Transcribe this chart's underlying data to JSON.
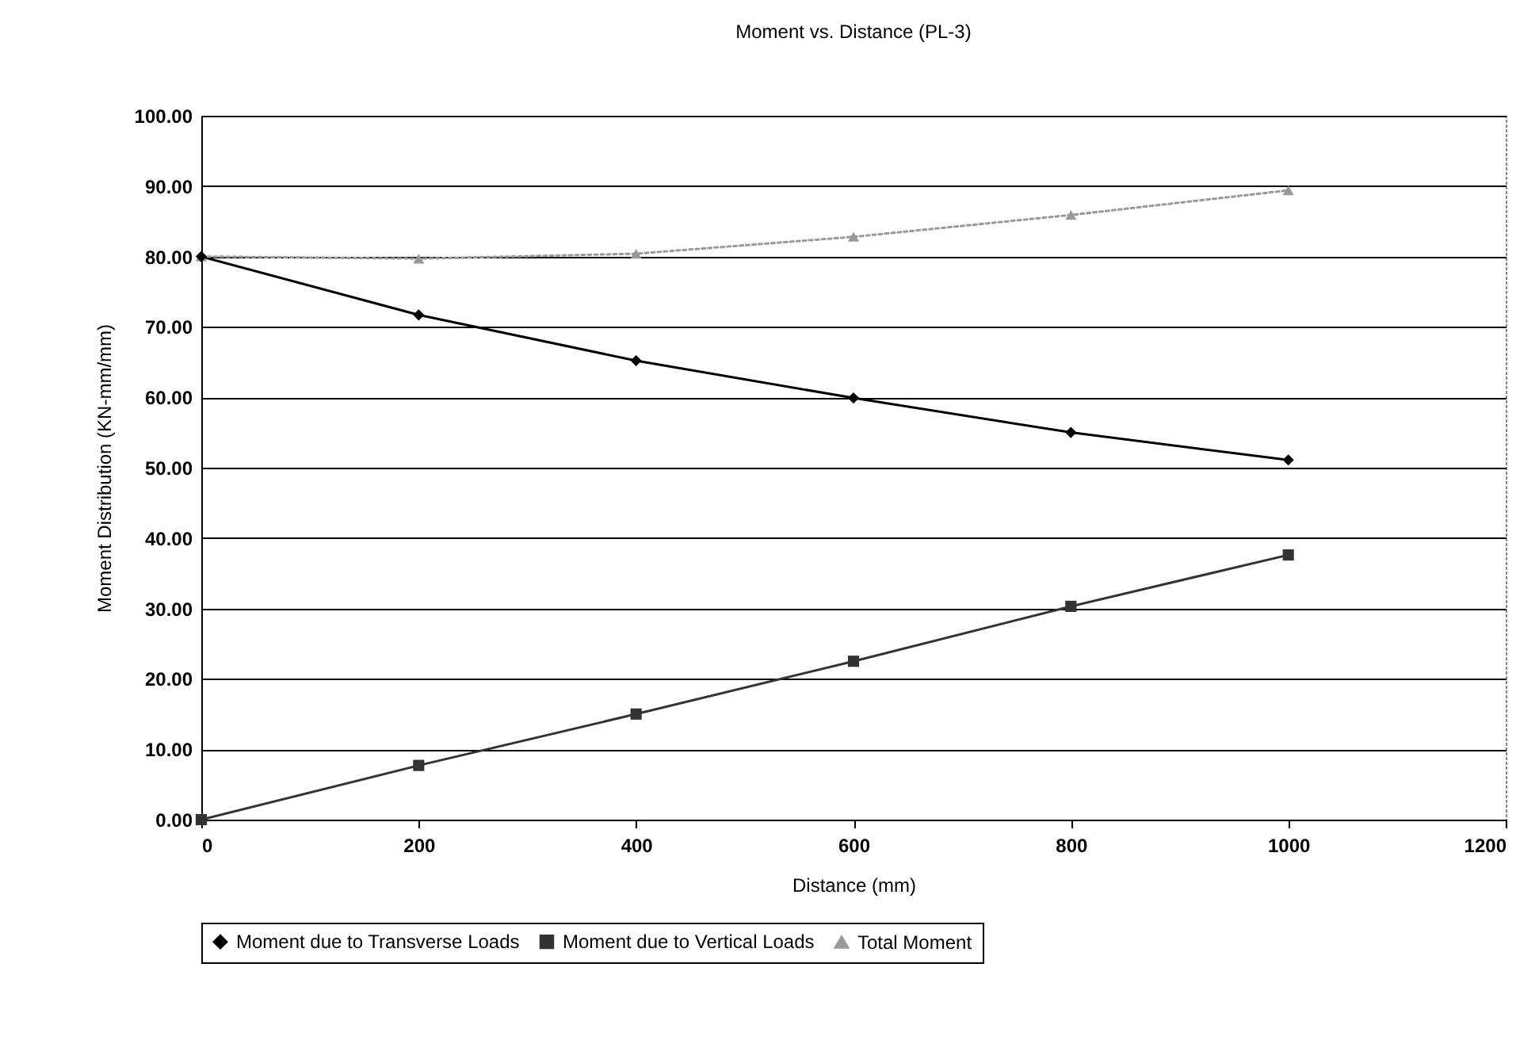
{
  "chart_data": {
    "type": "line",
    "title": "Moment vs. Distance (PL-3)",
    "xlabel": "Distance (mm)",
    "ylabel": "Moment Distribution (KN-mm/mm)",
    "x": [
      0,
      200,
      400,
      600,
      800,
      1000
    ],
    "series": [
      {
        "name": "Moment due to Transverse Loads",
        "color": "#000000",
        "marker": "diamond",
        "line_style": "solid",
        "values": [
          80.0,
          71.7,
          65.2,
          59.9,
          55.0,
          51.1
        ]
      },
      {
        "name": "Moment due to Vertical Loads",
        "color": "#333333",
        "marker": "square",
        "line_style": "solid",
        "values": [
          0.0,
          7.7,
          15.0,
          22.5,
          30.3,
          37.6
        ]
      },
      {
        "name": "Total Moment",
        "color": "#999999",
        "marker": "triangle",
        "line_style": "dotted",
        "values": [
          80.0,
          79.7,
          80.4,
          82.8,
          85.9,
          89.4
        ]
      }
    ],
    "xlim": [
      0,
      1200
    ],
    "xticks": [
      0,
      200,
      400,
      600,
      800,
      1000,
      1200
    ],
    "ylim": [
      0,
      100
    ],
    "yticks": [
      {
        "value": 0,
        "label": "0.00"
      },
      {
        "value": 10,
        "label": "10.00"
      },
      {
        "value": 20,
        "label": "20.00"
      },
      {
        "value": 30,
        "label": "30.00"
      },
      {
        "value": 40,
        "label": "40.00"
      },
      {
        "value": 50,
        "label": "50.00"
      },
      {
        "value": 60,
        "label": "60.00"
      },
      {
        "value": 70,
        "label": "70.00"
      },
      {
        "value": 80,
        "label": "80.00"
      },
      {
        "value": 90,
        "label": "90.00"
      },
      {
        "value": 100,
        "label": "100.00"
      }
    ],
    "grid": "y",
    "legend": "bottom"
  }
}
